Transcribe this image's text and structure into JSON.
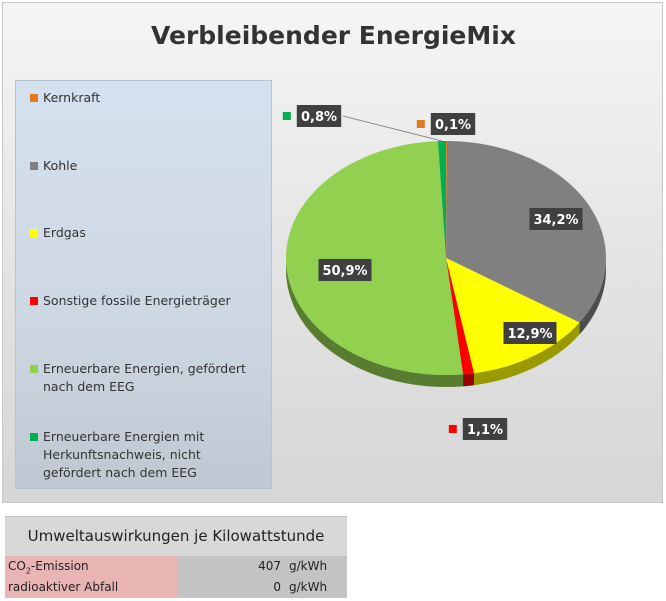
{
  "chart_data": {
    "type": "pie",
    "title": "Verbleibender EnergieMix",
    "categories": [
      "Kernkraft",
      "Kohle",
      "Erdgas",
      "Sonstige fossile Energieträger",
      "Erneuerbare Energien, gefördert nach dem EEG",
      "Erneuerbare Energien mit Herkunftsnachweis, nicht gefördert nach dem EEG"
    ],
    "values": [
      0.1,
      34.2,
      12.9,
      1.1,
      50.9,
      0.8
    ],
    "data_labels": [
      "0,1%",
      "34,2%",
      "12,9%",
      "1,1%",
      "50,9%",
      "0,8%"
    ],
    "colors": [
      "#e07a20",
      "#808080",
      "#ffff00",
      "#ff0000",
      "#92d050",
      "#00b050"
    ],
    "legend_position": "left",
    "style": "3d-pie"
  },
  "legend": {
    "items": [
      {
        "label": "Kernkraft",
        "color": "#e07a20"
      },
      {
        "label": "Kohle",
        "color": "#808080"
      },
      {
        "label": "Erdgas",
        "color": "#ffff00"
      },
      {
        "label": "Sonstige fossile Energieträger",
        "color": "#ff0000"
      },
      {
        "label": "Erneuerbare Energien, gefördert nach dem EEG",
        "color": "#92d050"
      },
      {
        "label": "Erneuerbare Energien mit Herkunftsnachweis, nicht gefördert nach dem EEG",
        "color": "#00b050"
      }
    ]
  },
  "table": {
    "header": "Umweltauswirkungen je Kilowattstunde",
    "rows": [
      {
        "label_main": "CO",
        "label_sub": "2",
        "label_rest": "-Emission",
        "value": "407",
        "unit": "g/kWh"
      },
      {
        "label_main": "radioaktiver Abfall",
        "label_sub": "",
        "label_rest": "",
        "value": "0",
        "unit": "g/kWh"
      }
    ]
  }
}
